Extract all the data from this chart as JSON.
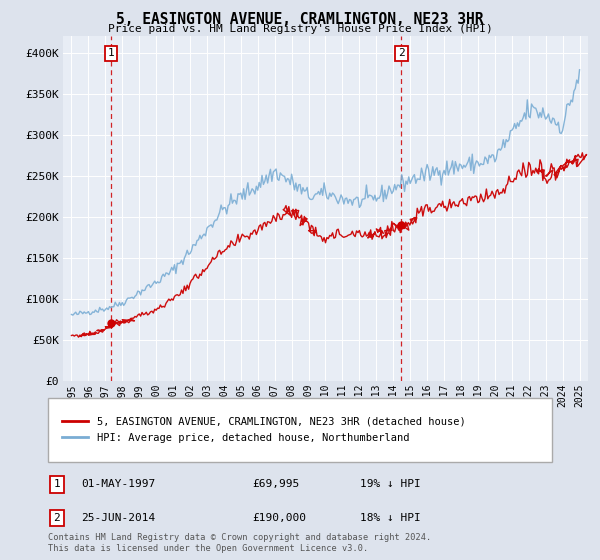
{
  "title": "5, EASINGTON AVENUE, CRAMLINGTON, NE23 3HR",
  "subtitle": "Price paid vs. HM Land Registry's House Price Index (HPI)",
  "legend_line1": "5, EASINGTON AVENUE, CRAMLINGTON, NE23 3HR (detached house)",
  "legend_line2": "HPI: Average price, detached house, Northumberland",
  "transaction1_date": "01-MAY-1997",
  "transaction1_price": "£69,995",
  "transaction1_hpi": "19% ↓ HPI",
  "transaction1_year": 1997.33,
  "transaction1_value": 69995,
  "transaction2_date": "25-JUN-2014",
  "transaction2_price": "£190,000",
  "transaction2_hpi": "18% ↓ HPI",
  "transaction2_year": 2014.48,
  "transaction2_value": 190000,
  "footer": "Contains HM Land Registry data © Crown copyright and database right 2024.\nThis data is licensed under the Open Government Licence v3.0.",
  "y_ticks": [
    0,
    50000,
    100000,
    150000,
    200000,
    250000,
    300000,
    350000,
    400000
  ],
  "y_tick_labels": [
    "£0",
    "£50K",
    "£100K",
    "£150K",
    "£200K",
    "£250K",
    "£300K",
    "£350K",
    "£400K"
  ],
  "x_min": 1994.5,
  "x_max": 2025.5,
  "y_min": 0,
  "y_max": 420000,
  "hpi_color": "#7aadd4",
  "sale_color": "#cc0000",
  "vline_color": "#cc0000",
  "bg_color": "#dde3ed",
  "plot_bg_color": "#e8edf5"
}
